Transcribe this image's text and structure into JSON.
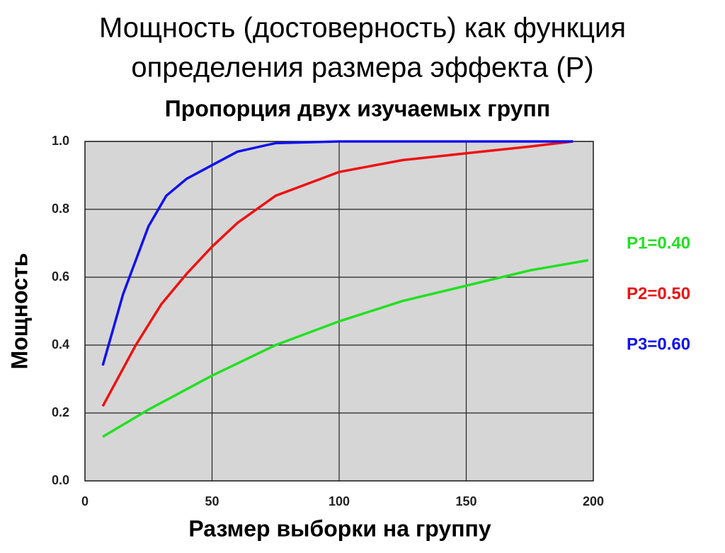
{
  "chart_data": {
    "type": "line",
    "title": [
      "Мощность (достоверность) как функция",
      "определения размера эффекта (Р)"
    ],
    "subtitle": "Пропорция двух изучаемых групп",
    "xlabel": "Размер выборки на группу",
    "ylabel": "Мощность",
    "xlim": [
      0,
      200
    ],
    "xticks": [
      0,
      50,
      100,
      150,
      200
    ],
    "ylim": [
      0,
      1
    ],
    "yticks": [
      {
        "value": 0,
        "label": "0.0"
      },
      0.2,
      0.4,
      0.6,
      0.8,
      {
        "value": 1,
        "label": "1.0"
      }
    ],
    "grid": true,
    "legend": "right",
    "series": [
      {
        "name": "P1=0.40",
        "color": "#22e022",
        "x": [
          7,
          25,
          50,
          75,
          100,
          125,
          150,
          175,
          198
        ],
        "values": [
          0.13,
          0.21,
          0.31,
          0.4,
          0.47,
          0.53,
          0.575,
          0.62,
          0.65
        ]
      },
      {
        "name": "P2=0.50",
        "color": "#ee1111",
        "x": [
          7,
          20,
          30,
          40,
          50,
          60,
          75,
          100,
          125,
          150,
          175,
          192
        ],
        "values": [
          0.22,
          0.4,
          0.52,
          0.61,
          0.69,
          0.76,
          0.84,
          0.91,
          0.945,
          0.965,
          0.985,
          1.0
        ]
      },
      {
        "name": "P3=0.60",
        "color": "#1111ee",
        "x": [
          7,
          15,
          25,
          32,
          40,
          50,
          60,
          75,
          100,
          150,
          192
        ],
        "values": [
          0.34,
          0.55,
          0.75,
          0.84,
          0.89,
          0.93,
          0.97,
          0.995,
          1.0,
          1.0,
          1.0
        ]
      }
    ]
  }
}
